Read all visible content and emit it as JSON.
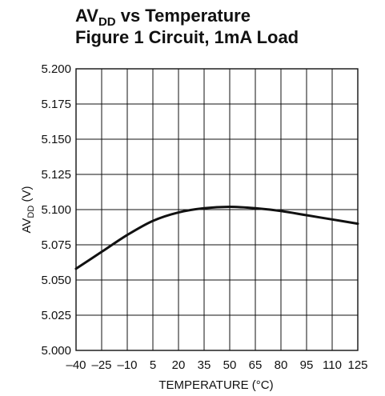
{
  "chart_data": {
    "type": "line",
    "title_main": "AV",
    "title_sub": "DD",
    "title_rest": " vs Temperature",
    "subtitle": "Figure 1 Circuit, 1mA Load",
    "xlabel": "TEMPERATURE (°C)",
    "ylabel_main": "AV",
    "ylabel_sub": "DD",
    "ylabel_rest": " (V)",
    "xlim": [
      -40,
      125
    ],
    "ylim": [
      5.0,
      5.2
    ],
    "x_ticks": [
      -40,
      -25,
      -10,
      5,
      20,
      35,
      50,
      65,
      80,
      95,
      110,
      125
    ],
    "x_tick_labels": [
      "–40",
      "–25",
      "–10",
      "5",
      "20",
      "35",
      "50",
      "65",
      "80",
      "95",
      "110",
      "125"
    ],
    "y_ticks": [
      5.0,
      5.025,
      5.05,
      5.075,
      5.1,
      5.125,
      5.15,
      5.175,
      5.2
    ],
    "y_tick_labels": [
      "5.000",
      "5.025",
      "5.050",
      "5.075",
      "5.100",
      "5.125",
      "5.150",
      "5.175",
      "5.200"
    ],
    "grid": true,
    "series": [
      {
        "x": [
          -40,
          -25,
          -10,
          5,
          20,
          35,
          50,
          65,
          80,
          95,
          110,
          125
        ],
        "y": [
          5.058,
          5.07,
          5.082,
          5.092,
          5.098,
          5.101,
          5.102,
          5.101,
          5.099,
          5.096,
          5.093,
          5.09
        ]
      }
    ]
  }
}
